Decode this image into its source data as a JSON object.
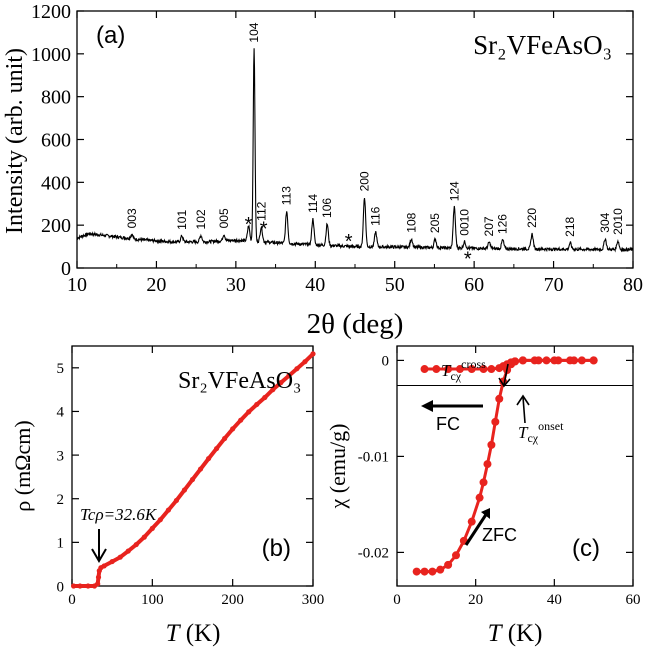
{
  "chart_data": [
    {
      "type": "line",
      "panel_label": "(a)",
      "compound": "Sr₂VFeAsO₃",
      "xlabel": "2θ (deg)",
      "ylabel": "Intensity (arb. unit)",
      "xlim": [
        10,
        80
      ],
      "ylim": [
        0,
        1200
      ],
      "xticks": [
        "10",
        "20",
        "30",
        "40",
        "50",
        "60",
        "70",
        "80"
      ],
      "yticks": [
        "0",
        "200",
        "400",
        "600",
        "800",
        "1000",
        "1200"
      ],
      "grid": false,
      "baseline": [
        [
          10,
          140
        ],
        [
          11.5,
          160
        ],
        [
          14,
          150
        ],
        [
          18,
          132
        ],
        [
          22,
          122
        ],
        [
          26,
          122
        ],
        [
          30,
          130
        ],
        [
          35,
          118
        ],
        [
          40,
          108
        ],
        [
          45,
          100
        ],
        [
          50,
          98
        ],
        [
          55,
          95
        ],
        [
          60,
          92
        ],
        [
          65,
          90
        ],
        [
          70,
          88
        ],
        [
          75,
          87
        ],
        [
          80,
          86
        ]
      ],
      "peaks": [
        {
          "x": 16.9,
          "h": 20,
          "label": "003"
        },
        {
          "x": 23.2,
          "h": 28,
          "label": "101"
        },
        {
          "x": 25.6,
          "h": 30,
          "label": "102"
        },
        {
          "x": 28.5,
          "h": 30,
          "label": "005"
        },
        {
          "x": 31.6,
          "h": 70,
          "label": ""
        },
        {
          "x": 32.3,
          "h": 900,
          "label": "104"
        },
        {
          "x": 33.2,
          "h": 70,
          "label": "112"
        },
        {
          "x": 36.4,
          "h": 150,
          "label": "113"
        },
        {
          "x": 39.7,
          "h": 120,
          "label": "114"
        },
        {
          "x": 41.5,
          "h": 100,
          "label": "106"
        },
        {
          "x": 46.2,
          "h": 230,
          "label": "200"
        },
        {
          "x": 47.6,
          "h": 70,
          "label": "116"
        },
        {
          "x": 52.1,
          "h": 40,
          "label": "108"
        },
        {
          "x": 55.1,
          "h": 40,
          "label": "205"
        },
        {
          "x": 57.5,
          "h": 190,
          "label": "124"
        },
        {
          "x": 58.8,
          "h": 30,
          "label": "0010"
        },
        {
          "x": 61.9,
          "h": 28,
          "label": "207"
        },
        {
          "x": 63.6,
          "h": 40,
          "label": "126"
        },
        {
          "x": 67.3,
          "h": 70,
          "label": "220"
        },
        {
          "x": 72.1,
          "h": 30,
          "label": "218"
        },
        {
          "x": 76.5,
          "h": 50,
          "label": "304"
        },
        {
          "x": 78.1,
          "h": 40,
          "label": "2010"
        }
      ],
      "impurity_markers": [
        {
          "x": 31.6,
          "y": 210
        },
        {
          "x": 33.5,
          "y": 190
        },
        {
          "x": 44.2,
          "y": 130
        },
        {
          "x": 59.2,
          "y": 50
        }
      ],
      "impurity_color": "#e8231e"
    },
    {
      "type": "scatter",
      "panel_label": "(b)",
      "compound": "Sr₂VFeAsO₃",
      "xlabel": "T (K)",
      "ylabel": "ρ (mΩcm)",
      "xlim": [
        0,
        300
      ],
      "ylim": [
        0,
        5.5
      ],
      "xticks": [
        "0",
        "100",
        "200",
        "300"
      ],
      "yticks": [
        "0",
        "1",
        "2",
        "3",
        "4",
        "5"
      ],
      "annotation": "Tcρ=32.6K",
      "grid": false,
      "color": "#e8231e",
      "points": [
        [
          2,
          0
        ],
        [
          10,
          0
        ],
        [
          20,
          0
        ],
        [
          28,
          0
        ],
        [
          32,
          0.05
        ],
        [
          33,
          0.2
        ],
        [
          34,
          0.35
        ],
        [
          36,
          0.42
        ],
        [
          40,
          0.46
        ],
        [
          50,
          0.56
        ],
        [
          60,
          0.66
        ],
        [
          70,
          0.8
        ],
        [
          80,
          0.95
        ],
        [
          90,
          1.12
        ],
        [
          100,
          1.32
        ],
        [
          110,
          1.52
        ],
        [
          120,
          1.74
        ],
        [
          130,
          1.96
        ],
        [
          140,
          2.2
        ],
        [
          150,
          2.44
        ],
        [
          160,
          2.68
        ],
        [
          170,
          2.92
        ],
        [
          180,
          3.15
        ],
        [
          190,
          3.38
        ],
        [
          200,
          3.6
        ],
        [
          210,
          3.8
        ],
        [
          220,
          3.99
        ],
        [
          230,
          4.16
        ],
        [
          240,
          4.32
        ],
        [
          250,
          4.5
        ],
        [
          260,
          4.66
        ],
        [
          270,
          4.82
        ],
        [
          280,
          4.98
        ],
        [
          290,
          5.14
        ],
        [
          300,
          5.32
        ]
      ]
    },
    {
      "type": "scatter",
      "panel_label": "(c)",
      "xlabel": "T (K)",
      "ylabel": "χ (emu/g)",
      "xlim": [
        0,
        60
      ],
      "ylim": [
        -0.0235,
        0.0015
      ],
      "xticks": [
        "0",
        "20",
        "40",
        "60"
      ],
      "yticks": [
        "0",
        "-0.01",
        "-0.02"
      ],
      "annotations": {
        "cross": "Tcχcross",
        "onset": "Tcχonset",
        "fc": "FC",
        "zfc": "ZFC"
      },
      "grid": false,
      "color": "#e8231e",
      "series": [
        {
          "name": "FC",
          "points": [
            [
              7,
              -0.0009
            ],
            [
              10,
              -0.0009
            ],
            [
              13,
              -0.0009
            ],
            [
              16,
              -0.0009
            ],
            [
              19,
              -0.0009
            ],
            [
              22,
              -0.0009
            ],
            [
              24,
              -0.0009
            ],
            [
              26,
              -0.0008
            ],
            [
              27,
              -0.0006
            ],
            [
              28,
              -0.0004
            ],
            [
              29,
              -0.0002
            ],
            [
              30,
              -0.0001
            ],
            [
              32,
              0
            ],
            [
              35,
              0
            ],
            [
              38,
              0
            ],
            [
              41,
              0
            ],
            [
              44,
              0
            ],
            [
              47,
              0
            ],
            [
              50,
              0
            ]
          ]
        },
        {
          "name": "ZFC",
          "points": [
            [
              5,
              -0.022
            ],
            [
              7,
              -0.022
            ],
            [
              9,
              -0.022
            ],
            [
              11,
              -0.0218
            ],
            [
              13,
              -0.0213
            ],
            [
              15,
              -0.0203
            ],
            [
              17,
              -0.0188
            ],
            [
              19,
              -0.0168
            ],
            [
              21,
              -0.0143
            ],
            [
              22,
              -0.0127
            ],
            [
              23,
              -0.0108
            ],
            [
              24,
              -0.0088
            ],
            [
              25,
              -0.0064
            ],
            [
              26,
              -0.004
            ],
            [
              27,
              -0.0022
            ],
            [
              28,
              -0.001
            ],
            [
              29,
              -0.0004
            ],
            [
              30,
              -0.0001
            ],
            [
              32,
              0
            ],
            [
              36,
              0
            ],
            [
              40,
              0
            ],
            [
              45,
              0
            ],
            [
              50,
              0
            ]
          ]
        }
      ]
    }
  ]
}
